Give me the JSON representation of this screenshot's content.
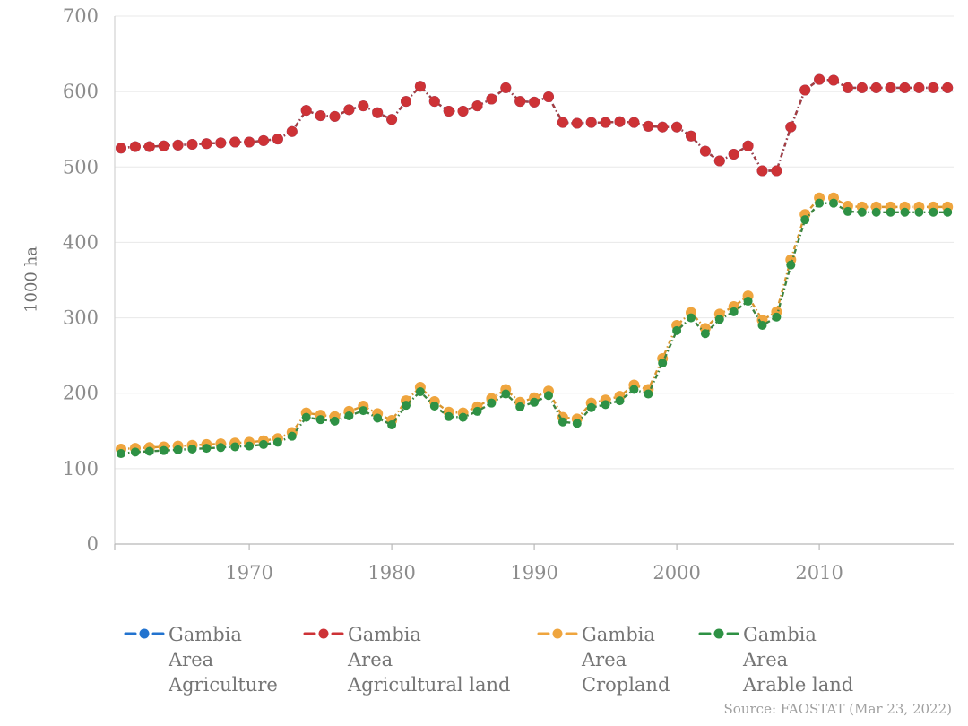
{
  "chart_data": {
    "type": "line",
    "title": "",
    "ylabel": "1000 ha",
    "ylim": [
      0,
      700
    ],
    "xlim": [
      1961,
      2019
    ],
    "yticks": [
      0,
      100,
      200,
      300,
      400,
      500,
      600,
      700
    ],
    "xticks": [
      1970,
      1980,
      1990,
      2000,
      2010
    ],
    "grid": "horizontal",
    "legend_position": "bottom",
    "marker_style": "dashed line with round dot markers",
    "x": [
      1961,
      1962,
      1963,
      1964,
      1965,
      1966,
      1967,
      1968,
      1969,
      1970,
      1971,
      1972,
      1973,
      1974,
      1975,
      1976,
      1977,
      1978,
      1979,
      1980,
      1981,
      1982,
      1983,
      1984,
      1985,
      1986,
      1987,
      1988,
      1989,
      1990,
      1991,
      1992,
      1993,
      1994,
      1995,
      1996,
      1997,
      1998,
      1999,
      2000,
      2001,
      2002,
      2003,
      2004,
      2005,
      2006,
      2007,
      2008,
      2009,
      2010,
      2011,
      2012,
      2013,
      2014,
      2015,
      2016,
      2017,
      2018,
      2019
    ],
    "series": [
      {
        "id": "agriculture",
        "name": "Gambia Area Agriculture",
        "color": "#2273cf",
        "line_color": "#2273cf",
        "dot_radius": 6,
        "values": [
          525,
          527,
          527,
          528,
          529,
          530,
          531,
          532,
          533,
          533,
          535,
          537,
          547,
          575,
          568,
          567,
          576,
          581,
          572,
          563,
          587,
          607,
          587,
          574,
          574,
          581,
          590,
          605,
          587,
          586,
          593,
          559,
          558,
          559,
          559,
          560,
          559,
          554,
          553,
          553,
          541,
          521,
          508,
          517,
          528,
          495,
          495,
          553,
          602,
          616,
          615,
          605,
          605,
          605,
          605,
          605,
          605,
          605,
          605
        ]
      },
      {
        "id": "agricultural-land",
        "name": "Gambia Area Agricultural land",
        "color": "#cd3236",
        "line_color": "#a83e40",
        "dot_radius": 6,
        "values": [
          525,
          527,
          527,
          528,
          529,
          530,
          531,
          532,
          533,
          533,
          535,
          537,
          547,
          575,
          568,
          567,
          576,
          581,
          572,
          563,
          587,
          607,
          587,
          574,
          574,
          581,
          590,
          605,
          587,
          586,
          593,
          559,
          558,
          559,
          559,
          560,
          559,
          554,
          553,
          553,
          541,
          521,
          508,
          517,
          528,
          495,
          495,
          553,
          602,
          616,
          615,
          605,
          605,
          605,
          605,
          605,
          605,
          605,
          605
        ]
      },
      {
        "id": "cropland",
        "name": "Gambia Area Cropland",
        "color": "#efa53e",
        "line_color": "#d9962f",
        "dot_radius": 6,
        "values": [
          126,
          127,
          128,
          129,
          130,
          131,
          132,
          133,
          134,
          135,
          137,
          140,
          148,
          174,
          171,
          169,
          176,
          183,
          173,
          164,
          190,
          208,
          189,
          175,
          174,
          182,
          193,
          205,
          188,
          194,
          203,
          168,
          166,
          187,
          191,
          196,
          211,
          205,
          246,
          290,
          307,
          286,
          305,
          315,
          329,
          297,
          308,
          377,
          437,
          459,
          459,
          448,
          447,
          447,
          447,
          447,
          447,
          447,
          447
        ]
      },
      {
        "id": "arable-land",
        "name": "Gambia Area Arable land",
        "color": "#2e9144",
        "line_color": "#3d8440",
        "dot_radius": 5,
        "values": [
          120,
          122,
          123,
          124,
          125,
          126,
          127,
          128,
          129,
          130,
          132,
          135,
          143,
          168,
          165,
          163,
          170,
          177,
          167,
          158,
          184,
          202,
          183,
          169,
          168,
          176,
          187,
          199,
          182,
          188,
          197,
          162,
          160,
          181,
          185,
          190,
          205,
          199,
          240,
          283,
          300,
          279,
          298,
          308,
          322,
          290,
          301,
          370,
          430,
          452,
          452,
          441,
          440,
          440,
          440,
          440,
          440,
          440,
          440
        ]
      }
    ]
  },
  "legend": {
    "items": [
      {
        "lines": [
          "Gambia",
          "Area",
          "Agriculture"
        ]
      },
      {
        "lines": [
          "Gambia",
          "Area",
          "Agricultural land"
        ]
      },
      {
        "lines": [
          "Gambia",
          "Area",
          "Cropland"
        ]
      },
      {
        "lines": [
          "Gambia",
          "Area",
          "Arable land"
        ]
      }
    ]
  },
  "source": {
    "text": "Source: FAOSTAT (Mar 23, 2022)"
  }
}
